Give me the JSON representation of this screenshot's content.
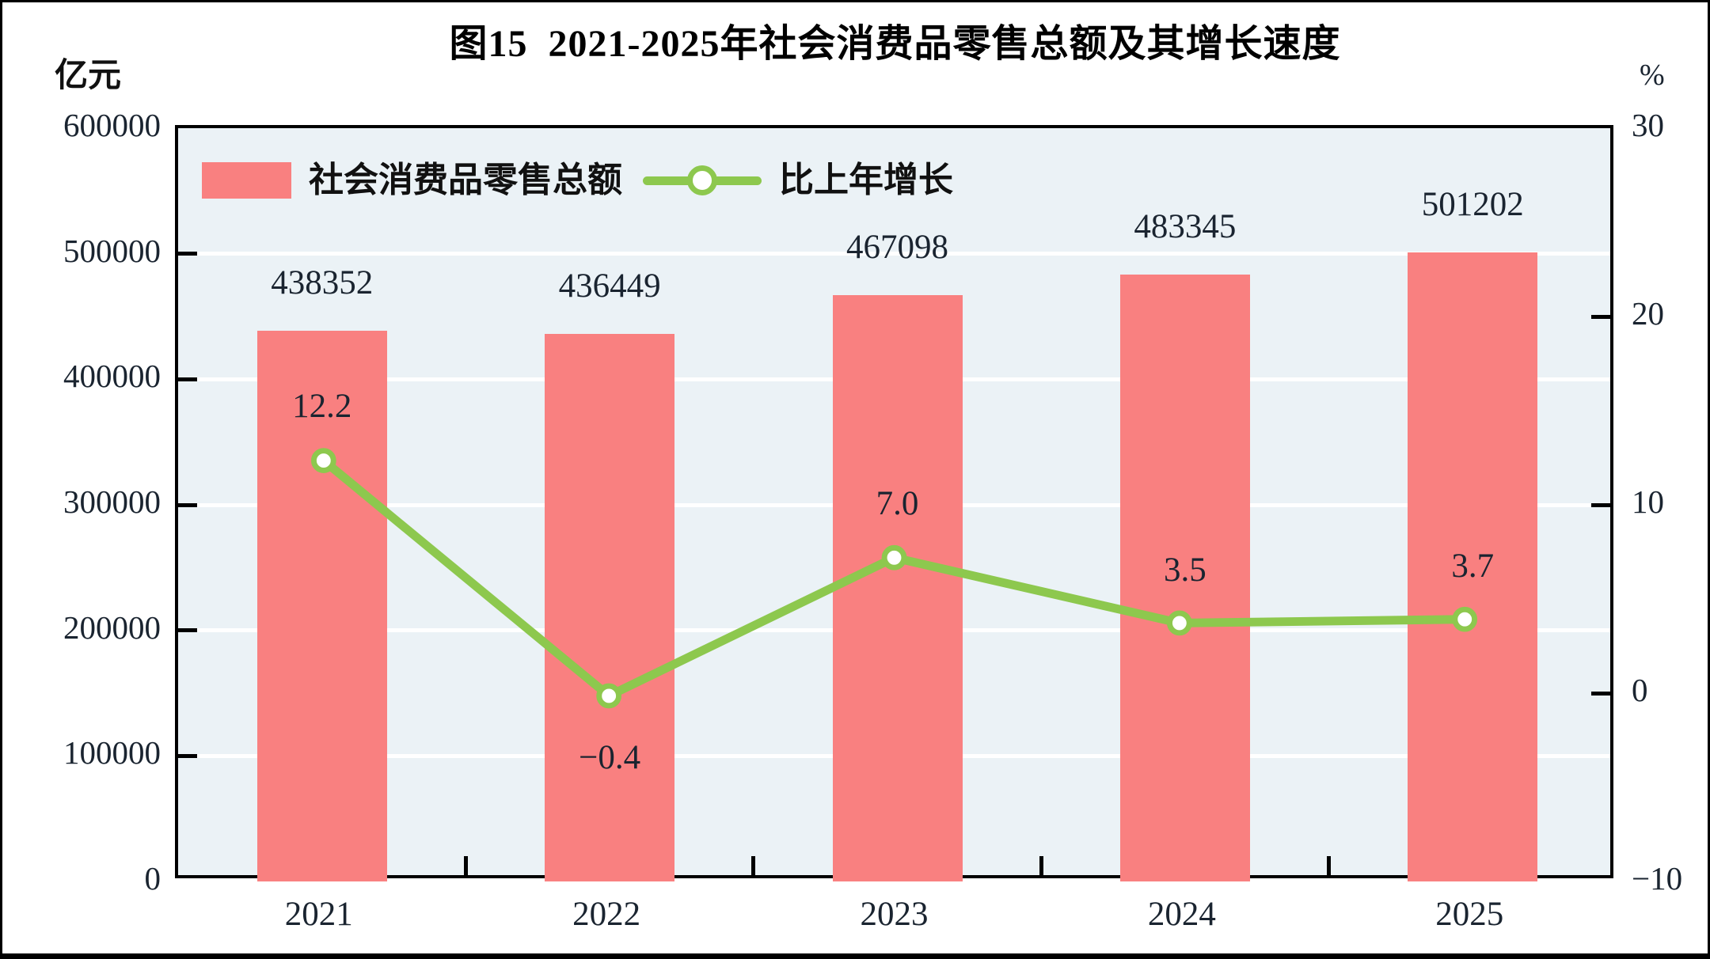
{
  "title": "图15  2021-2025年社会消费品零售总额及其增长速度",
  "left_axis": {
    "unit": "亿元",
    "tick_labels": [
      "600000",
      "500000",
      "400000",
      "300000",
      "200000",
      "100000",
      "0"
    ],
    "min": 0,
    "max": 600000
  },
  "right_axis": {
    "unit": "%",
    "tick_labels": [
      "30",
      "20",
      "10",
      "0",
      "−10"
    ],
    "tick_values": [
      30,
      20,
      10,
      0,
      -10
    ],
    "inner_tick_values": [
      20,
      10,
      0
    ],
    "min": -10,
    "max": 30
  },
  "legend": {
    "items": [
      {
        "label": "社会消费品零售总额",
        "type": "bar"
      },
      {
        "label": "比上年增长",
        "type": "line"
      }
    ]
  },
  "chart_data": {
    "type": "bar",
    "subtype": "bar+line dual axis",
    "title": "图15  2021-2025年社会消费品零售总额及其增长速度",
    "categories": [
      "2021",
      "2022",
      "2023",
      "2024",
      "2025"
    ],
    "series": [
      {
        "name": "社会消费品零售总额",
        "type": "bar",
        "axis": "left",
        "unit": "亿元",
        "values": [
          438352,
          436449,
          467098,
          483345,
          501202
        ],
        "data_labels": [
          "438352",
          "436449",
          "467098",
          "483345",
          "501202"
        ]
      },
      {
        "name": "比上年增长",
        "type": "line",
        "axis": "right",
        "unit": "%",
        "values": [
          12.2,
          -0.4,
          7.0,
          3.5,
          3.7
        ],
        "data_labels": [
          "12.2",
          "−0.4",
          "7.0",
          "3.5",
          "3.7"
        ],
        "label_placement": [
          "above",
          "below",
          "above",
          "above",
          "above"
        ]
      }
    ],
    "left_ylim": [
      0,
      600000
    ],
    "right_ylim": [
      -10,
      30
    ],
    "grid": "horizontal white lines every 100000",
    "legend_position": "top-left inside plot"
  },
  "colors": {
    "bar": "#F98080",
    "line": "#8DC84E",
    "marker_fill": "#FFFFFF",
    "plot_bg": "#EBF2F6",
    "grid": "#FFFFFF",
    "frame": "#000000",
    "text": "#1A2430",
    "title": "#000000"
  }
}
